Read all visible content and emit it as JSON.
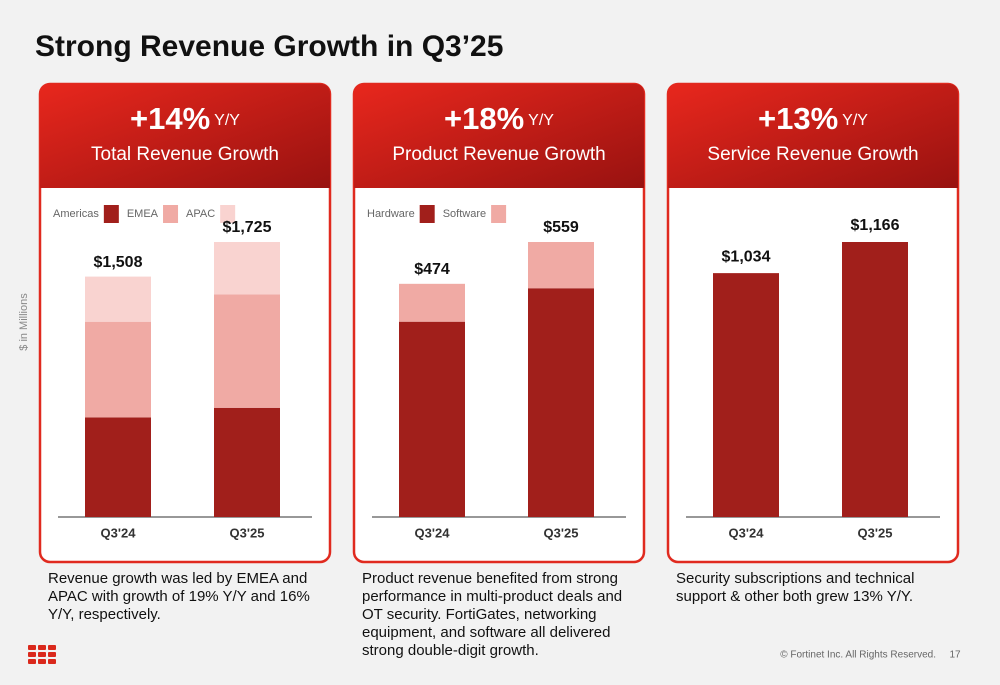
{
  "title": "Strong Revenue Growth in Q3’25",
  "axis_label": "$ in Millions",
  "footer": "© Fortinet Inc. All Rights Reserved.",
  "page_number": 17,
  "chart_data": [
    {
      "type": "bar",
      "stacked": true,
      "headline": "+14%",
      "headline_unit": "Y/Y",
      "subtitle": "Total Revenue Growth",
      "categories": [
        "Q3'24",
        "Q3'25"
      ],
      "series": [
        {
          "name": "Americas",
          "color": "#a11f1b",
          "values": [
            625,
            685
          ]
        },
        {
          "name": "EMEA",
          "color": "#f0aaa4",
          "values": [
            600,
            711
          ]
        },
        {
          "name": "APAC",
          "color": "#f9d3d0",
          "values": [
            283,
            329
          ]
        }
      ],
      "totals": [
        1508,
        1725
      ],
      "total_labels": [
        "$1,508",
        "$1,725"
      ],
      "note": "Revenue growth was led by EMEA and APAC with growth of 19% Y/Y and 16% Y/Y, respectively."
    },
    {
      "type": "bar",
      "stacked": true,
      "headline": "+18%",
      "headline_unit": "Y/Y",
      "subtitle": "Product Revenue Growth",
      "categories": [
        "Q3'24",
        "Q3'25"
      ],
      "series": [
        {
          "name": "Hardware",
          "color": "#a11f1b",
          "values": [
            397,
            465
          ]
        },
        {
          "name": "Software",
          "color": "#f0aaa4",
          "values": [
            77,
            94
          ]
        }
      ],
      "totals": [
        474,
        559
      ],
      "total_labels": [
        "$474",
        "$559"
      ],
      "note": "Product revenue benefited from strong performance in multi-product deals and OT security. FortiGates, networking equipment, and software all delivered strong double-digit growth."
    },
    {
      "type": "bar",
      "stacked": false,
      "headline": "+13%",
      "headline_unit": "Y/Y",
      "subtitle": "Service Revenue Growth",
      "categories": [
        "Q3'24",
        "Q3'25"
      ],
      "color": "#a11f1b",
      "values": [
        1034,
        1166
      ],
      "value_labels": [
        "$1,034",
        "$1,166"
      ],
      "note": "Security subscriptions and technical support & other both grew 13% Y/Y."
    }
  ]
}
